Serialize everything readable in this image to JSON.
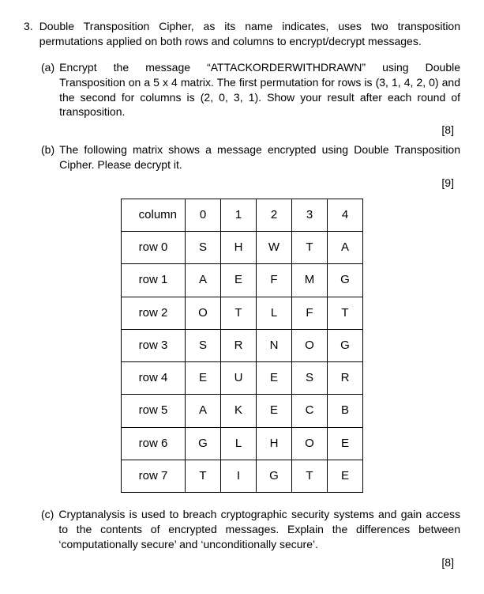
{
  "question": {
    "number": "3.",
    "intro": "Double Transposition Cipher, as its name indicates, uses two transposition permutations applied on both rows and columns to encrypt/decrypt messages.",
    "parts": {
      "a": {
        "label": "(a)",
        "text": "Encrypt the message “ATTACKORDERWITHDRAWN” using Double Transposition on a 5 x 4 matrix.  The first permutation for rows is (3, 1, 4, 2, 0) and the second for columns is (2, 0, 3, 1). Show your result after each round of transposition.",
        "marks": "[8]"
      },
      "b": {
        "label": "(b)",
        "text": "The following matrix shows a message encrypted using Double Transposition Cipher. Please decrypt it.",
        "marks": "[9]"
      },
      "c": {
        "label": "(c)",
        "text": "Cryptanalysis is used to breach cryptographic security systems and gain access to the contents of encrypted messages. Explain the differences between ‘computationally secure’ and ‘unconditionally secure’.",
        "marks": "[8]"
      }
    }
  },
  "table": {
    "corner": "column",
    "col_headers": [
      "0",
      "1",
      "2",
      "3",
      "4"
    ],
    "rows": [
      {
        "label": "row 0",
        "cells": [
          "S",
          "H",
          "W",
          "T",
          "A"
        ]
      },
      {
        "label": "row 1",
        "cells": [
          "A",
          "E",
          "F",
          "M",
          "G"
        ]
      },
      {
        "label": "row 2",
        "cells": [
          "O",
          "T",
          "L",
          "F",
          "T"
        ]
      },
      {
        "label": "row 3",
        "cells": [
          "S",
          "R",
          "N",
          "O",
          "G"
        ]
      },
      {
        "label": "row 4",
        "cells": [
          "E",
          "U",
          "E",
          "S",
          "R"
        ]
      },
      {
        "label": "row 5",
        "cells": [
          "A",
          "K",
          "E",
          "C",
          "B"
        ]
      },
      {
        "label": "row 6",
        "cells": [
          "G",
          "L",
          "H",
          "O",
          "E"
        ]
      },
      {
        "label": "row 7",
        "cells": [
          "T",
          "I",
          "G",
          "T",
          "E"
        ]
      }
    ]
  }
}
